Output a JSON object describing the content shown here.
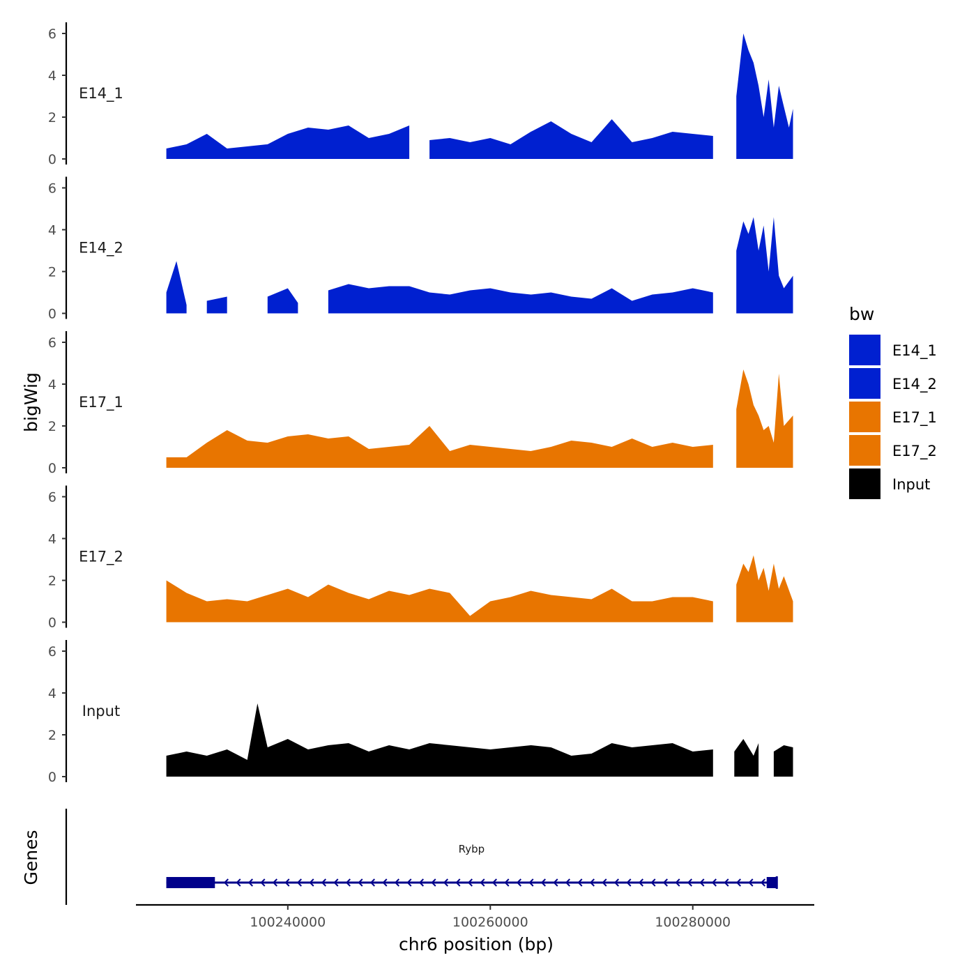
{
  "chart_data": {
    "type": "area",
    "title": "",
    "xlabel": "chr6 position (bp)",
    "ylabel": "bigWig",
    "genes_label": "Genes",
    "x_range": [
      100225000,
      100292000
    ],
    "ylim": [
      0,
      6.2
    ],
    "y_ticks": [
      0,
      2,
      4,
      6
    ],
    "x_ticks": [
      {
        "value": 100240000,
        "label": "100240000"
      },
      {
        "value": 100260000,
        "label": "100260000"
      },
      {
        "value": 100280000,
        "label": "100280000"
      }
    ],
    "grid": false,
    "legend": {
      "title": "bw",
      "position": "right",
      "entries": [
        {
          "name": "E14_1",
          "color": "#0020D0"
        },
        {
          "name": "E14_2",
          "color": "#0020D0"
        },
        {
          "name": "E17_1",
          "color": "#E87500"
        },
        {
          "name": "E17_2",
          "color": "#E87500"
        },
        {
          "name": "Input",
          "color": "#000000"
        }
      ]
    },
    "series": [
      {
        "name": "E14_1",
        "color": "#0020D0",
        "x": [
          100228000,
          100230000,
          100232000,
          100234000,
          100236000,
          100238000,
          100240000,
          100242000,
          100244000,
          100246000,
          100248000,
          100250000,
          100252000,
          100253000,
          100254000,
          100256000,
          100258000,
          100260000,
          100262000,
          100264000,
          100266000,
          100268000,
          100270000,
          100272000,
          100274000,
          100276000,
          100278000,
          100280000,
          100282000,
          100283300,
          100284300,
          100285000,
          100285500,
          100286000,
          100286500,
          100287000,
          100287500,
          100288000,
          100288500,
          100289000,
          100289500,
          100289900
        ],
        "values": [
          0.5,
          0.7,
          1.2,
          0.5,
          0.6,
          0.7,
          1.2,
          1.5,
          1.4,
          1.6,
          1.0,
          1.2,
          1.6,
          0.0,
          0.9,
          1.0,
          0.8,
          1.0,
          0.7,
          1.3,
          1.8,
          1.2,
          0.8,
          1.9,
          0.8,
          1.0,
          1.3,
          1.2,
          1.1,
          0.0,
          3.0,
          6.0,
          5.2,
          4.6,
          3.5,
          2.0,
          3.8,
          1.5,
          3.5,
          2.5,
          1.5,
          2.4
        ]
      },
      {
        "name": "E14_2",
        "color": "#0020D0",
        "x": [
          100228000,
          100229000,
          100230000,
          100231000,
          100232000,
          100234000,
          100235000,
          100236000,
          100238000,
          100240000,
          100241000,
          100242000,
          100244000,
          100246000,
          100248000,
          100250000,
          100252000,
          100254000,
          100256000,
          100258000,
          100260000,
          100262000,
          100264000,
          100266000,
          100268000,
          100270000,
          100272000,
          100274000,
          100276000,
          100278000,
          100280000,
          100282000,
          100283300,
          100284300,
          100285000,
          100285500,
          100286000,
          100286500,
          100287000,
          100287500,
          100288000,
          100288500,
          100289000,
          100289900
        ],
        "values": [
          1.0,
          2.5,
          0.4,
          0.0,
          0.6,
          0.8,
          0.0,
          0.0,
          0.8,
          1.2,
          0.5,
          0.0,
          1.1,
          1.4,
          1.2,
          1.3,
          1.3,
          1.0,
          0.9,
          1.1,
          1.2,
          1.0,
          0.9,
          1.0,
          0.8,
          0.7,
          1.2,
          0.6,
          0.9,
          1.0,
          1.2,
          1.0,
          0.0,
          3.0,
          4.4,
          3.8,
          4.6,
          3.0,
          4.2,
          2.0,
          4.6,
          1.8,
          1.2,
          1.8
        ]
      },
      {
        "name": "E17_1",
        "color": "#E87500",
        "x": [
          100228000,
          100230000,
          100232000,
          100234000,
          100236000,
          100238000,
          100240000,
          100242000,
          100244000,
          100246000,
          100248000,
          100250000,
          100252000,
          100254000,
          100256000,
          100258000,
          100260000,
          100262000,
          100264000,
          100266000,
          100268000,
          100270000,
          100272000,
          100274000,
          100276000,
          100278000,
          100280000,
          100282000,
          100283300,
          100284300,
          100285000,
          100285500,
          100286000,
          100286500,
          100287000,
          100287500,
          100288000,
          100288500,
          100289000,
          100289900
        ],
        "values": [
          0.5,
          0.5,
          1.2,
          1.8,
          1.3,
          1.2,
          1.5,
          1.6,
          1.4,
          1.5,
          0.9,
          1.0,
          1.1,
          2.0,
          0.8,
          1.1,
          1.0,
          0.9,
          0.8,
          1.0,
          1.3,
          1.2,
          1.0,
          1.4,
          1.0,
          1.2,
          1.0,
          1.1,
          0.0,
          2.8,
          4.7,
          4.0,
          3.0,
          2.5,
          1.8,
          2.0,
          1.2,
          4.5,
          2.0,
          2.5
        ]
      },
      {
        "name": "E17_2",
        "color": "#E87500",
        "x": [
          100228000,
          100230000,
          100232000,
          100234000,
          100236000,
          100238000,
          100240000,
          100242000,
          100244000,
          100246000,
          100248000,
          100250000,
          100252000,
          100254000,
          100256000,
          100258000,
          100260000,
          100262000,
          100264000,
          100266000,
          100268000,
          100270000,
          100272000,
          100274000,
          100276000,
          100278000,
          100280000,
          100282000,
          100283300,
          100284300,
          100285000,
          100285500,
          100286000,
          100286500,
          100287000,
          100287500,
          100288000,
          100288500,
          100289000,
          100289900
        ],
        "values": [
          2.0,
          1.4,
          1.0,
          1.1,
          1.0,
          1.3,
          1.6,
          1.2,
          1.8,
          1.4,
          1.1,
          1.5,
          1.3,
          1.6,
          1.4,
          0.3,
          1.0,
          1.2,
          1.5,
          1.3,
          1.2,
          1.1,
          1.6,
          1.0,
          1.0,
          1.2,
          1.2,
          1.0,
          0.0,
          1.8,
          2.8,
          2.4,
          3.2,
          2.0,
          2.6,
          1.5,
          2.8,
          1.6,
          2.2,
          1.0
        ]
      },
      {
        "name": "Input",
        "color": "#000000",
        "x": [
          100228000,
          100230000,
          100232000,
          100234000,
          100236000,
          100237000,
          100238000,
          100240000,
          100242000,
          100244000,
          100246000,
          100248000,
          100250000,
          100252000,
          100254000,
          100256000,
          100258000,
          100260000,
          100262000,
          100264000,
          100266000,
          100268000,
          100270000,
          100272000,
          100274000,
          100276000,
          100278000,
          100280000,
          100282000,
          100283100,
          100284100,
          100285000,
          100286000,
          100286500,
          100287000,
          100288000,
          100289000,
          100289900
        ],
        "values": [
          1.0,
          1.2,
          1.0,
          1.3,
          0.8,
          3.5,
          1.4,
          1.8,
          1.3,
          1.5,
          1.6,
          1.2,
          1.5,
          1.3,
          1.6,
          1.5,
          1.4,
          1.3,
          1.4,
          1.5,
          1.4,
          1.0,
          1.1,
          1.6,
          1.4,
          1.5,
          1.6,
          1.2,
          1.3,
          0.0,
          1.2,
          1.8,
          1.0,
          1.6,
          0.0,
          1.2,
          1.5,
          1.4
        ]
      }
    ],
    "genes": [
      {
        "name": "Rybp",
        "start": 100228000,
        "end": 100288300,
        "strand": "-",
        "color": "#00008B",
        "exons": [
          [
            100228000,
            100232800
          ],
          [
            100287300,
            100288300
          ]
        ]
      }
    ]
  }
}
